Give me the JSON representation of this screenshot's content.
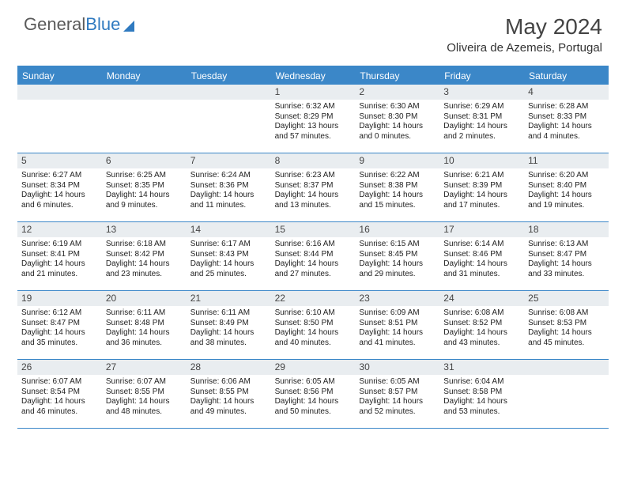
{
  "brand": {
    "part1": "General",
    "part2": "Blue"
  },
  "title": "May 2024",
  "location": "Oliveira de Azemeis, Portugal",
  "colors": {
    "header_bar": "#3b87c8",
    "daynum_bg": "#e9edf0",
    "text": "#333333",
    "white": "#ffffff"
  },
  "day_names": [
    "Sunday",
    "Monday",
    "Tuesday",
    "Wednesday",
    "Thursday",
    "Friday",
    "Saturday"
  ],
  "weeks": [
    [
      null,
      null,
      null,
      {
        "n": "1",
        "sr": "Sunrise: 6:32 AM",
        "ss": "Sunset: 8:29 PM",
        "d1": "Daylight: 13 hours",
        "d2": "and 57 minutes."
      },
      {
        "n": "2",
        "sr": "Sunrise: 6:30 AM",
        "ss": "Sunset: 8:30 PM",
        "d1": "Daylight: 14 hours",
        "d2": "and 0 minutes."
      },
      {
        "n": "3",
        "sr": "Sunrise: 6:29 AM",
        "ss": "Sunset: 8:31 PM",
        "d1": "Daylight: 14 hours",
        "d2": "and 2 minutes."
      },
      {
        "n": "4",
        "sr": "Sunrise: 6:28 AM",
        "ss": "Sunset: 8:33 PM",
        "d1": "Daylight: 14 hours",
        "d2": "and 4 minutes."
      }
    ],
    [
      {
        "n": "5",
        "sr": "Sunrise: 6:27 AM",
        "ss": "Sunset: 8:34 PM",
        "d1": "Daylight: 14 hours",
        "d2": "and 6 minutes."
      },
      {
        "n": "6",
        "sr": "Sunrise: 6:25 AM",
        "ss": "Sunset: 8:35 PM",
        "d1": "Daylight: 14 hours",
        "d2": "and 9 minutes."
      },
      {
        "n": "7",
        "sr": "Sunrise: 6:24 AM",
        "ss": "Sunset: 8:36 PM",
        "d1": "Daylight: 14 hours",
        "d2": "and 11 minutes."
      },
      {
        "n": "8",
        "sr": "Sunrise: 6:23 AM",
        "ss": "Sunset: 8:37 PM",
        "d1": "Daylight: 14 hours",
        "d2": "and 13 minutes."
      },
      {
        "n": "9",
        "sr": "Sunrise: 6:22 AM",
        "ss": "Sunset: 8:38 PM",
        "d1": "Daylight: 14 hours",
        "d2": "and 15 minutes."
      },
      {
        "n": "10",
        "sr": "Sunrise: 6:21 AM",
        "ss": "Sunset: 8:39 PM",
        "d1": "Daylight: 14 hours",
        "d2": "and 17 minutes."
      },
      {
        "n": "11",
        "sr": "Sunrise: 6:20 AM",
        "ss": "Sunset: 8:40 PM",
        "d1": "Daylight: 14 hours",
        "d2": "and 19 minutes."
      }
    ],
    [
      {
        "n": "12",
        "sr": "Sunrise: 6:19 AM",
        "ss": "Sunset: 8:41 PM",
        "d1": "Daylight: 14 hours",
        "d2": "and 21 minutes."
      },
      {
        "n": "13",
        "sr": "Sunrise: 6:18 AM",
        "ss": "Sunset: 8:42 PM",
        "d1": "Daylight: 14 hours",
        "d2": "and 23 minutes."
      },
      {
        "n": "14",
        "sr": "Sunrise: 6:17 AM",
        "ss": "Sunset: 8:43 PM",
        "d1": "Daylight: 14 hours",
        "d2": "and 25 minutes."
      },
      {
        "n": "15",
        "sr": "Sunrise: 6:16 AM",
        "ss": "Sunset: 8:44 PM",
        "d1": "Daylight: 14 hours",
        "d2": "and 27 minutes."
      },
      {
        "n": "16",
        "sr": "Sunrise: 6:15 AM",
        "ss": "Sunset: 8:45 PM",
        "d1": "Daylight: 14 hours",
        "d2": "and 29 minutes."
      },
      {
        "n": "17",
        "sr": "Sunrise: 6:14 AM",
        "ss": "Sunset: 8:46 PM",
        "d1": "Daylight: 14 hours",
        "d2": "and 31 minutes."
      },
      {
        "n": "18",
        "sr": "Sunrise: 6:13 AM",
        "ss": "Sunset: 8:47 PM",
        "d1": "Daylight: 14 hours",
        "d2": "and 33 minutes."
      }
    ],
    [
      {
        "n": "19",
        "sr": "Sunrise: 6:12 AM",
        "ss": "Sunset: 8:47 PM",
        "d1": "Daylight: 14 hours",
        "d2": "and 35 minutes."
      },
      {
        "n": "20",
        "sr": "Sunrise: 6:11 AM",
        "ss": "Sunset: 8:48 PM",
        "d1": "Daylight: 14 hours",
        "d2": "and 36 minutes."
      },
      {
        "n": "21",
        "sr": "Sunrise: 6:11 AM",
        "ss": "Sunset: 8:49 PM",
        "d1": "Daylight: 14 hours",
        "d2": "and 38 minutes."
      },
      {
        "n": "22",
        "sr": "Sunrise: 6:10 AM",
        "ss": "Sunset: 8:50 PM",
        "d1": "Daylight: 14 hours",
        "d2": "and 40 minutes."
      },
      {
        "n": "23",
        "sr": "Sunrise: 6:09 AM",
        "ss": "Sunset: 8:51 PM",
        "d1": "Daylight: 14 hours",
        "d2": "and 41 minutes."
      },
      {
        "n": "24",
        "sr": "Sunrise: 6:08 AM",
        "ss": "Sunset: 8:52 PM",
        "d1": "Daylight: 14 hours",
        "d2": "and 43 minutes."
      },
      {
        "n": "25",
        "sr": "Sunrise: 6:08 AM",
        "ss": "Sunset: 8:53 PM",
        "d1": "Daylight: 14 hours",
        "d2": "and 45 minutes."
      }
    ],
    [
      {
        "n": "26",
        "sr": "Sunrise: 6:07 AM",
        "ss": "Sunset: 8:54 PM",
        "d1": "Daylight: 14 hours",
        "d2": "and 46 minutes."
      },
      {
        "n": "27",
        "sr": "Sunrise: 6:07 AM",
        "ss": "Sunset: 8:55 PM",
        "d1": "Daylight: 14 hours",
        "d2": "and 48 minutes."
      },
      {
        "n": "28",
        "sr": "Sunrise: 6:06 AM",
        "ss": "Sunset: 8:55 PM",
        "d1": "Daylight: 14 hours",
        "d2": "and 49 minutes."
      },
      {
        "n": "29",
        "sr": "Sunrise: 6:05 AM",
        "ss": "Sunset: 8:56 PM",
        "d1": "Daylight: 14 hours",
        "d2": "and 50 minutes."
      },
      {
        "n": "30",
        "sr": "Sunrise: 6:05 AM",
        "ss": "Sunset: 8:57 PM",
        "d1": "Daylight: 14 hours",
        "d2": "and 52 minutes."
      },
      {
        "n": "31",
        "sr": "Sunrise: 6:04 AM",
        "ss": "Sunset: 8:58 PM",
        "d1": "Daylight: 14 hours",
        "d2": "and 53 minutes."
      },
      null
    ]
  ]
}
